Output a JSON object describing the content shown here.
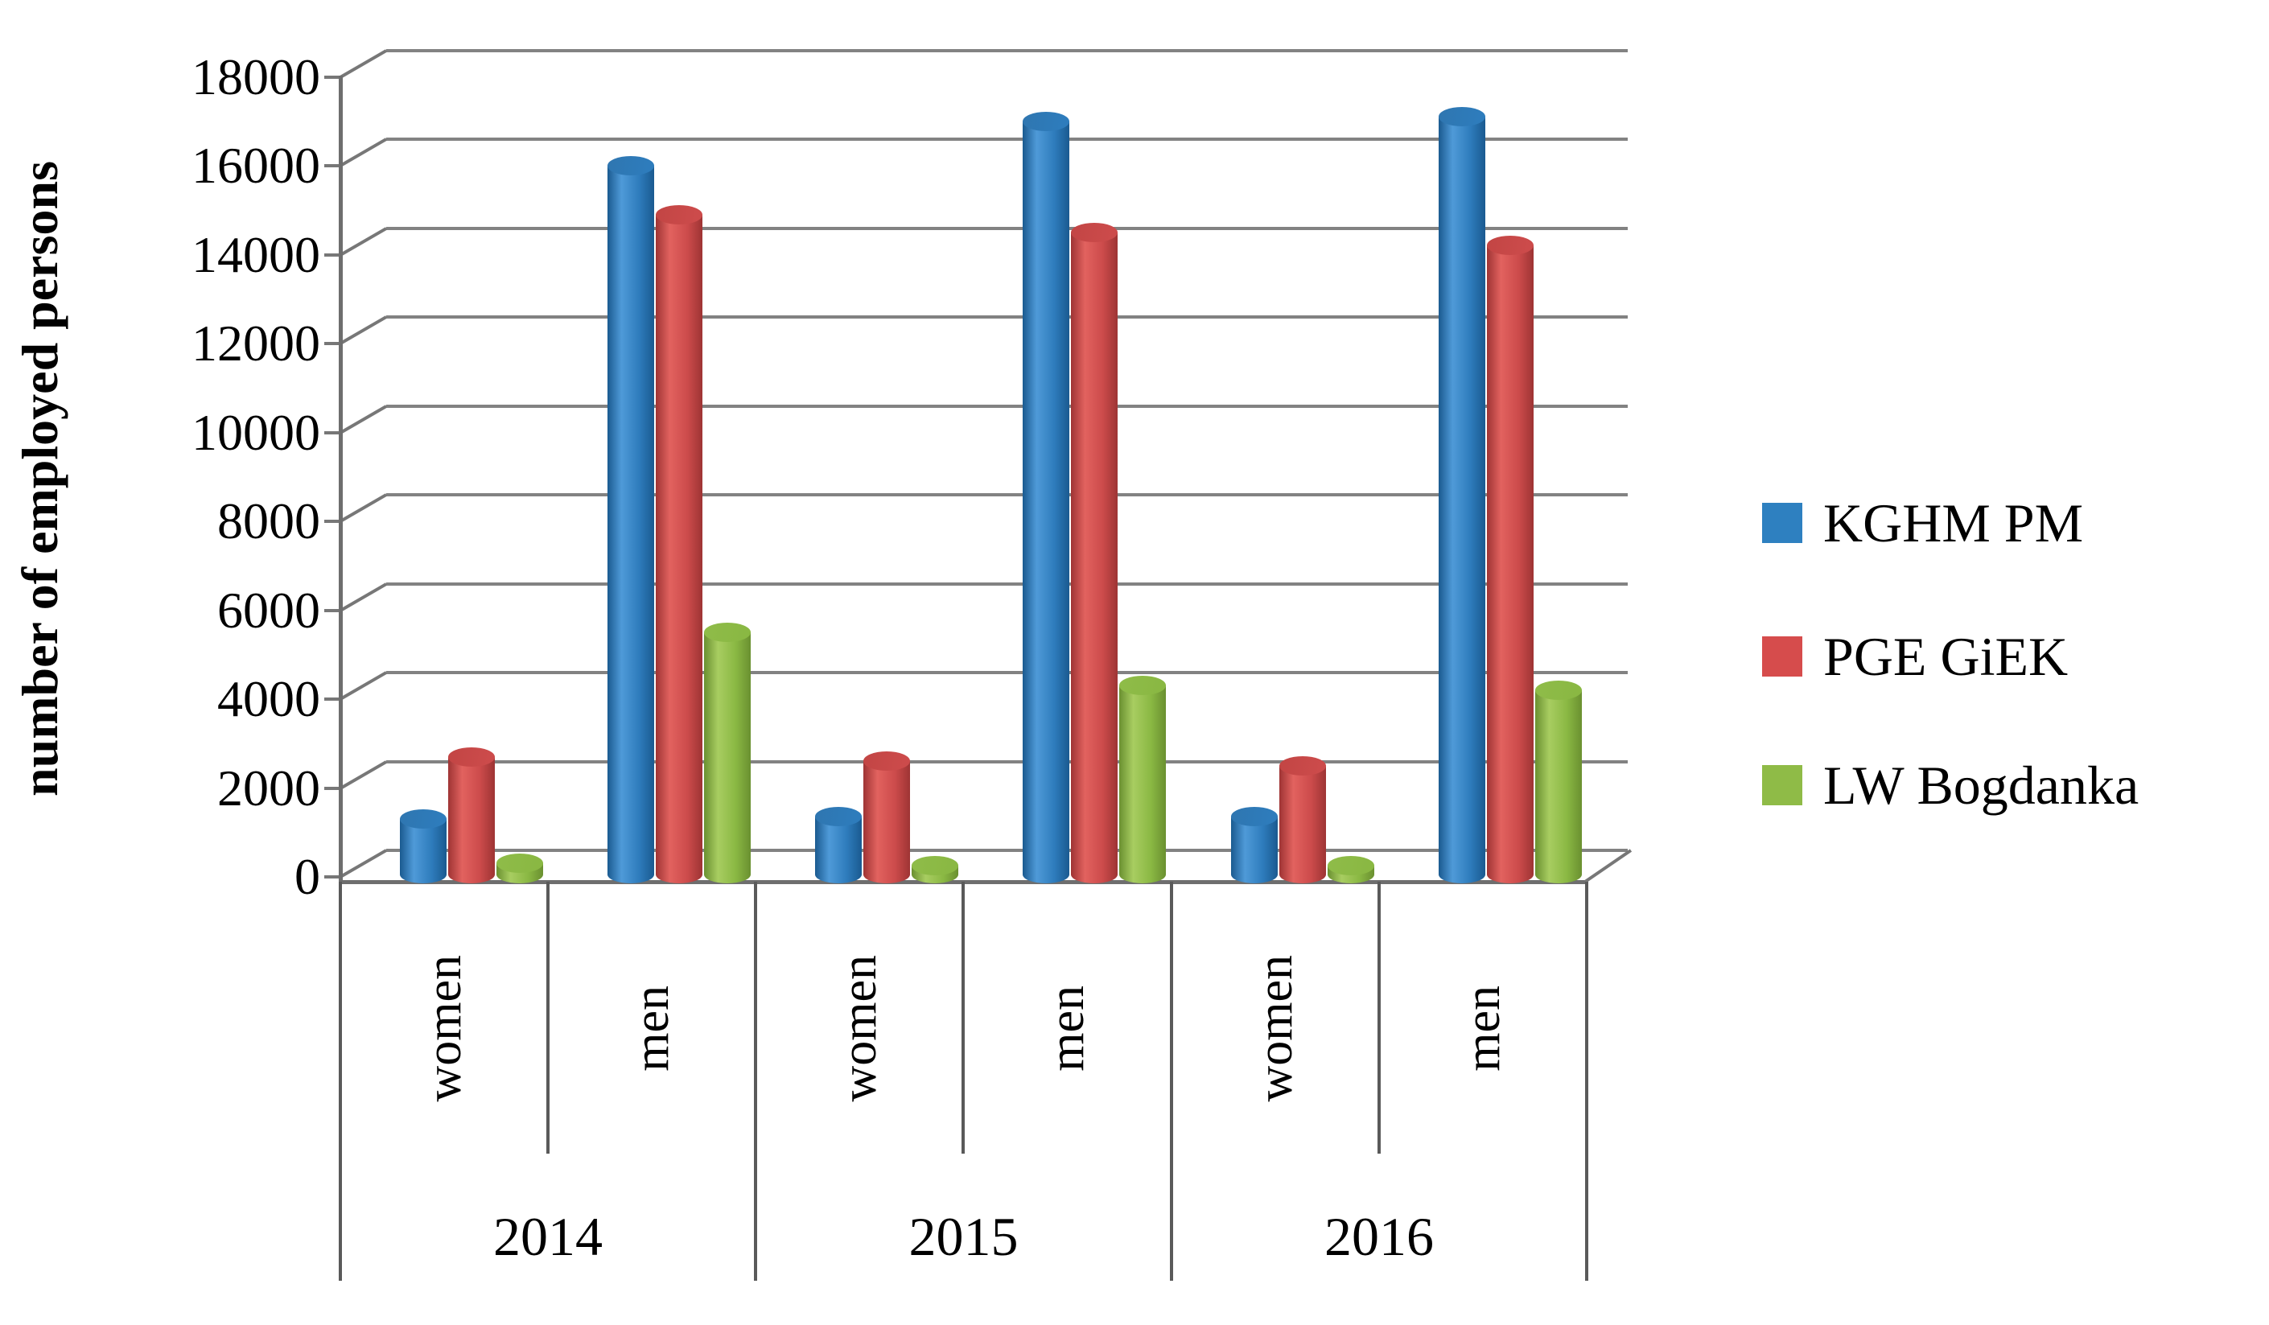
{
  "figure": {
    "background": "#ffffff"
  },
  "chart_data": {
    "type": "bar",
    "style": "3d-cylinder",
    "title": "",
    "xlabel": "",
    "ylabel": "number of employed persons",
    "ylim": [
      0,
      18000
    ],
    "ytick_step": 2000,
    "grid": "horizontal",
    "legend_position": "right",
    "group_labels": {
      "years": [
        "2014",
        "2015",
        "2016"
      ],
      "genders": [
        "women",
        "men"
      ]
    },
    "categories": [
      "2014 women",
      "2014 men",
      "2015 women",
      "2015 men",
      "2016 women",
      "2016 men"
    ],
    "series": [
      {
        "name": "KGHM PM",
        "values": [
          1300,
          16000,
          1350,
          17000,
          1350,
          17100
        ],
        "color": "#2E7CBC",
        "color_dark": "#1A5A90",
        "color_light": "#4F9AD8",
        "cap_color": "#2F76B0",
        "legend_color": "#2E80C0"
      },
      {
        "name": "PGE GiEK",
        "values": [
          2700,
          14900,
          2600,
          14500,
          2500,
          14200
        ],
        "color": "#CC4B4B",
        "color_dark": "#9E3434",
        "color_light": "#E2625F",
        "cap_color": "#C24544",
        "legend_color": "#D64C4C"
      },
      {
        "name": "LW Bogdanka",
        "values": [
          300,
          5500,
          250,
          4300,
          250,
          4200
        ],
        "color": "#8AB843",
        "color_dark": "#6A9030",
        "color_light": "#A8CD61",
        "cap_color": "#8FBC49",
        "legend_color": "#8FBB47"
      }
    ]
  }
}
